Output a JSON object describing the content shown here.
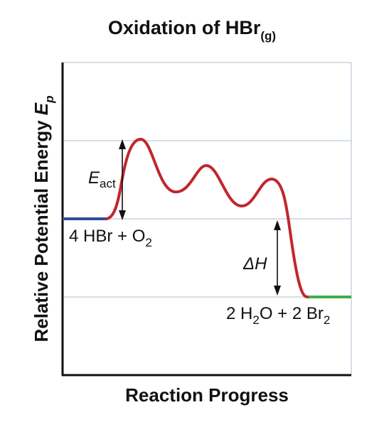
{
  "chart_data": {
    "type": "line",
    "title": "Oxidation of HBr",
    "title_subscript": "(g)",
    "xlabel": "Reaction Progress",
    "ylabel": "Relative Potential Energy",
    "ylabel_symbol": "E",
    "ylabel_symbol_sub": "p",
    "grid": true,
    "reactant_label": {
      "main": "4 HBr + O",
      "sub": "2"
    },
    "product_label": {
      "p1": "2 H",
      "s1": "2",
      "p2": "O + 2 Br",
      "s2": "2"
    },
    "activation_label": {
      "main": "E",
      "sub": "act"
    },
    "enthalpy_label": "ΔH",
    "colors": {
      "curve": "#c0272d",
      "reactant_level": "#2e4a9e",
      "product_level": "#3fae49",
      "grid": "#c9d3e0",
      "axis": "#111111"
    }
  }
}
